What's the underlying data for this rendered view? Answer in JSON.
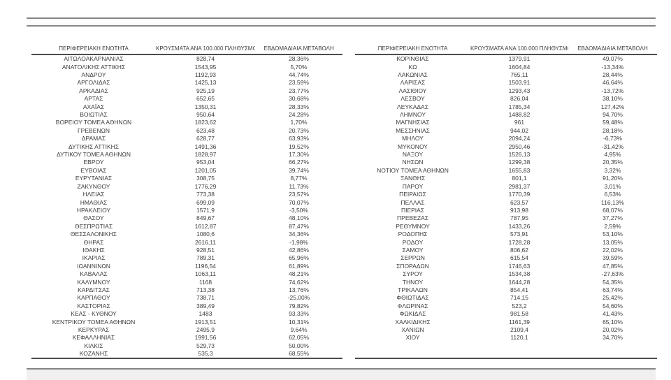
{
  "tables": {
    "headers": [
      "ΠΕΡΙΦΕΡΕΙΑΚΗ ΕΝΟΤΗΤΑ",
      "ΚΡΟΥΣΜΑΤΑ ΑΝΑ 100.000 ΠΛΗΘΥΣΜΟ",
      "ΕΒΔΟΜΑΔΙΑΙΑ ΜΕΤΑΒΟΛΗ"
    ],
    "left": {
      "rows": [
        [
          "ΑΙΤΩΛΟΑΚΑΡΝΑΝΙΑΣ",
          "828,74",
          "28,36%"
        ],
        [
          "ΑΝΑΤΟΛΙΚΗΣ ΑΤΤΙΚΗΣ",
          "1543,95",
          "5,70%"
        ],
        [
          "ΑΝΔΡΟΥ",
          "1192,93",
          "44,74%"
        ],
        [
          "ΑΡΓΟΛΙΔΑΣ",
          "1425,13",
          "23,59%"
        ],
        [
          "ΑΡΚΑΔΙΑΣ",
          "925,19",
          "23,77%"
        ],
        [
          "ΑΡΤΑΣ",
          "652,65",
          "30,68%"
        ],
        [
          "ΑΧΑΪΑΣ",
          "1350,31",
          "28,33%"
        ],
        [
          "ΒΟΙΩΤΙΑΣ",
          "950,64",
          "24,28%"
        ],
        [
          "ΒΟΡΕΙΟΥ ΤΟΜΕΑ ΑΘΗΝΩΝ",
          "1823,62",
          "1,70%"
        ],
        [
          "ΓΡΕΒΕΝΩΝ",
          "623,48",
          "20,73%"
        ],
        [
          "ΔΡΑΜΑΣ",
          "628,77",
          "63,93%"
        ],
        [
          "ΔΥΤΙΚΗΣ ΑΤΤΙΚΗΣ",
          "1491,36",
          "19,52%"
        ],
        [
          "ΔΥΤΙΚΟΥ ΤΟΜΕΑ ΑΘΗΝΩΝ",
          "1828,97",
          "17,30%"
        ],
        [
          "ΕΒΡΟΥ",
          "953,04",
          "66,27%"
        ],
        [
          "ΕΥΒΟΙΑΣ",
          "1201,05",
          "39,74%"
        ],
        [
          "ΕΥΡΥΤΑΝΙΑΣ",
          "308,75",
          "8,77%"
        ],
        [
          "ΖΑΚΥΝΘΟΥ",
          "1776,29",
          "11,73%"
        ],
        [
          "ΗΛΕΙΑΣ",
          "773,38",
          "23,57%"
        ],
        [
          "ΗΜΑΘΙΑΣ",
          "699,09",
          "70,07%"
        ],
        [
          "ΗΡΑΚΛΕΙΟΥ",
          "1571,9",
          "-3,50%"
        ],
        [
          "ΘΑΣΟΥ",
          "849,67",
          "48,10%"
        ],
        [
          "ΘΕΣΠΡΩΤΙΑΣ",
          "1612,87",
          "87,47%"
        ],
        [
          "ΘΕΣΣΑΛΟΝΙΚΗΣ",
          "1080,6",
          "34,36%"
        ],
        [
          "ΘΗΡΑΣ",
          "2616,11",
          "-1,98%"
        ],
        [
          "ΙΘΑΚΗΣ",
          "928,51",
          "42,86%"
        ],
        [
          "ΙΚΑΡΙΑΣ",
          "789,31",
          "65,96%"
        ],
        [
          "ΙΩΑΝΝΙΝΩΝ",
          "1196,54",
          "61,89%"
        ],
        [
          "ΚΑΒΑΛΑΣ",
          "1063,11",
          "48,21%"
        ],
        [
          "ΚΑΛΥΜΝΟΥ",
          "1168",
          "74,62%"
        ],
        [
          "ΚΑΡΔΙΤΣΑΣ",
          "713,38",
          "13,76%"
        ],
        [
          "ΚΑΡΠΑΘΟΥ",
          "738,71",
          "-25,00%"
        ],
        [
          "ΚΑΣΤΟΡΙΑΣ",
          "389,49",
          "79,82%"
        ],
        [
          "ΚΕΑΣ - ΚΥΘΝΟΥ",
          "1483",
          "93,33%"
        ],
        [
          "ΚΕΝΤΡΙΚΟΥ ΤΟΜΕΑ ΑΘΗΝΩΝ",
          "1913,51",
          "10,31%"
        ],
        [
          "ΚΕΡΚΥΡΑΣ",
          "2495,9",
          "9,64%"
        ],
        [
          "ΚΕΦΑΛΛΗΝΙΑΣ",
          "1991,56",
          "62,05%"
        ],
        [
          "ΚΙΛΚΙΣ",
          "529,73",
          "50,00%"
        ],
        [
          "ΚΟΖΑΝΗΣ",
          "535,3",
          "68,55%"
        ]
      ]
    },
    "right": {
      "rows": [
        [
          "ΚΟΡΙΝΘΙΑΣ",
          "1379,91",
          "49,07%"
        ],
        [
          "ΚΩ",
          "1604,84",
          "-13,34%"
        ],
        [
          "ΛΑΚΩΝΙΑΣ",
          "765,11",
          "28,44%"
        ],
        [
          "ΛΑΡΙΣΑΣ",
          "1503,91",
          "46,64%"
        ],
        [
          "ΛΑΣΙΘΙΟΥ",
          "1293,43",
          "-13,72%"
        ],
        [
          "ΛΕΣΒΟΥ",
          "826,04",
          "38,10%"
        ],
        [
          "ΛΕΥΚΑΔΑΣ",
          "1785,34",
          "127,42%"
        ],
        [
          "ΛΗΜΝΟΥ",
          "1488,82",
          "94,70%"
        ],
        [
          "ΜΑΓΝΗΣΙΑΣ",
          "961",
          "59,48%"
        ],
        [
          "ΜΕΣΣΗΝΙΑΣ",
          "944,02",
          "28,18%"
        ],
        [
          "ΜΗΛΟΥ",
          "2094,24",
          "-6,73%"
        ],
        [
          "ΜΥΚΟΝΟΥ",
          "2950,46",
          "-31,42%"
        ],
        [
          "ΝΑΞΟΥ",
          "1526,13",
          "4,95%"
        ],
        [
          "ΝΗΣΩΝ",
          "1299,38",
          "20,35%"
        ],
        [
          "ΝΟΤΙΟΥ ΤΟΜΕΑ ΑΘΗΝΩΝ",
          "1655,83",
          "3,32%"
        ],
        [
          "ΞΑΝΘΗΣ",
          "801,1",
          "91,20%"
        ],
        [
          "ΠΑΡΟΥ",
          "2981,37",
          "3,01%"
        ],
        [
          "ΠΕΙΡΑΙΩΣ",
          "1770,39",
          "6,53%"
        ],
        [
          "ΠΕΛΛΑΣ",
          "623,57",
          "116,13%"
        ],
        [
          "ΠΙΕΡΙΑΣ",
          "913,98",
          "68,07%"
        ],
        [
          "ΠΡΕΒΕΖΑΣ",
          "787,95",
          "37,27%"
        ],
        [
          "ΡΕΘΥΜΝΟΥ",
          "1433,26",
          "2,59%"
        ],
        [
          "ΡΟΔΟΠΗΣ",
          "573,91",
          "53,10%"
        ],
        [
          "ΡΟΔΟΥ",
          "1728,28",
          "13,05%"
        ],
        [
          "ΣΑΜΟΥ",
          "806,62",
          "22,02%"
        ],
        [
          "ΣΕΡΡΩΝ",
          "615,54",
          "39,59%"
        ],
        [
          "ΣΠΟΡΑΔΩΝ",
          "1746,63",
          "47,85%"
        ],
        [
          "ΣΥΡΟΥ",
          "1534,38",
          "-27,63%"
        ],
        [
          "ΤΗΝΟΥ",
          "1644,28",
          "54,35%"
        ],
        [
          "ΤΡΙΚΑΛΩΝ",
          "854,41",
          "63,74%"
        ],
        [
          "ΦΘΙΩΤΙΔΑΣ",
          "714,15",
          "25,42%"
        ],
        [
          "ΦΛΩΡΙΝΑΣ",
          "523,2",
          "54,60%"
        ],
        [
          "ΦΩΚΙΔΑΣ",
          "981,58",
          "41,43%"
        ],
        [
          "ΧΑΛΚΙΔΙΚΗΣ",
          "1161,39",
          "65,10%"
        ],
        [
          "ΧΑΝΙΩΝ",
          "2109,4",
          "20,02%"
        ],
        [
          "ΧΙΟΥ",
          "1120,1",
          "34,70%"
        ]
      ]
    },
    "colors": {
      "text": "#3d3d3d",
      "table_border": "#4c4c4c",
      "band_border": "#858585",
      "band_fill": "#f0f0f0"
    }
  }
}
